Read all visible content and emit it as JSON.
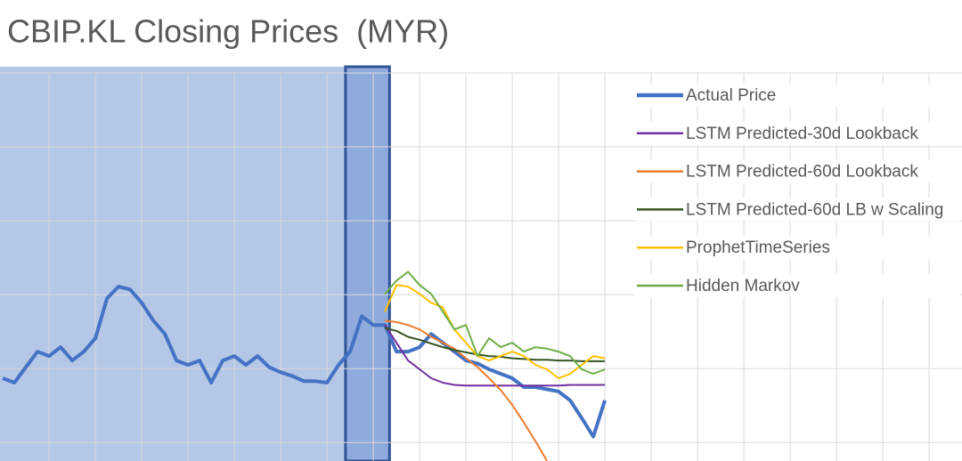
{
  "chart_data": {
    "type": "line",
    "title": "CBIP.KL Closing Prices  (MYR)",
    "x": [
      0,
      0.25,
      0.5,
      0.75,
      1,
      1.25,
      1.5,
      1.75,
      2,
      2.25,
      2.5,
      2.75,
      3,
      3.25,
      3.5,
      3.75,
      4,
      4.25,
      4.5,
      4.75,
      5,
      5.25,
      5.5,
      5.75,
      6,
      6.25,
      6.5,
      6.75,
      7,
      7.25,
      7.5,
      7.75,
      8,
      8.25,
      8.5,
      8.75,
      9,
      9.25,
      9.5,
      9.75,
      10,
      10.25,
      10.5,
      10.75,
      11,
      11.25,
      11.5,
      11.75,
      12,
      12.25,
      12.5,
      12.75,
      13
    ],
    "series": [
      {
        "name": "Actual Price",
        "color": "#4472c4",
        "width": 4,
        "values": [
          1.87,
          1.81,
          2.02,
          2.23,
          2.17,
          2.29,
          2.11,
          2.23,
          2.41,
          2.95,
          3.11,
          3.07,
          2.89,
          2.65,
          2.47,
          2.11,
          2.05,
          2.11,
          1.81,
          2.11,
          2.17,
          2.05,
          2.17,
          2.02,
          1.95,
          1.9,
          1.83,
          1.83,
          1.81,
          2.05,
          2.23,
          2.71,
          2.59,
          2.59,
          2.23,
          2.23,
          2.29,
          2.47,
          2.35,
          2.23,
          2.11,
          2.07,
          1.99,
          1.93,
          1.87,
          1.75,
          1.75,
          1.72,
          1.69,
          1.57,
          1.33,
          1.08,
          1.57
        ]
      },
      {
        "name": "LSTM Predicted-30d Lookback",
        "color": "#7030a0",
        "width": 2,
        "values": [
          null,
          null,
          null,
          null,
          null,
          null,
          null,
          null,
          null,
          null,
          null,
          null,
          null,
          null,
          null,
          null,
          null,
          null,
          null,
          null,
          null,
          null,
          null,
          null,
          null,
          null,
          null,
          null,
          null,
          null,
          null,
          null,
          null,
          2.59,
          2.35,
          2.11,
          1.99,
          1.87,
          1.81,
          1.78,
          1.77,
          1.77,
          1.77,
          1.77,
          1.77,
          1.77,
          1.77,
          1.77,
          1.77,
          1.78,
          1.78,
          1.78,
          1.78
        ]
      },
      {
        "name": "LSTM Predicted-60d Lookback",
        "color": "#ed7d31",
        "width": 2,
        "values": [
          null,
          null,
          null,
          null,
          null,
          null,
          null,
          null,
          null,
          null,
          null,
          null,
          null,
          null,
          null,
          null,
          null,
          null,
          null,
          null,
          null,
          null,
          null,
          null,
          null,
          null,
          null,
          null,
          null,
          null,
          null,
          null,
          null,
          2.65,
          2.63,
          2.59,
          2.53,
          2.43,
          2.35,
          2.27,
          2.14,
          2.02,
          1.87,
          1.71,
          1.51,
          1.27,
          1.02,
          0.75,
          null,
          null,
          null,
          null,
          null
        ]
      },
      {
        "name": "LSTM Predicted-60d LB w Scaling",
        "color": "#375623",
        "width": 2,
        "values": [
          null,
          null,
          null,
          null,
          null,
          null,
          null,
          null,
          null,
          null,
          null,
          null,
          null,
          null,
          null,
          null,
          null,
          null,
          null,
          null,
          null,
          null,
          null,
          null,
          null,
          null,
          null,
          null,
          null,
          null,
          null,
          null,
          null,
          2.55,
          2.51,
          2.43,
          2.39,
          2.34,
          2.29,
          2.25,
          2.22,
          2.19,
          2.17,
          2.16,
          2.14,
          2.13,
          2.12,
          2.12,
          2.11,
          2.11,
          2.1,
          2.1,
          2.1
        ]
      },
      {
        "name": "ProphetTimeSeries",
        "color": "#ffc000",
        "width": 2,
        "values": [
          null,
          null,
          null,
          null,
          null,
          null,
          null,
          null,
          null,
          null,
          null,
          null,
          null,
          null,
          null,
          null,
          null,
          null,
          null,
          null,
          null,
          null,
          null,
          null,
          null,
          null,
          null,
          null,
          null,
          null,
          null,
          null,
          null,
          2.77,
          3.13,
          3.11,
          3.01,
          2.89,
          2.83,
          2.53,
          2.35,
          2.17,
          2.11,
          2.17,
          2.23,
          2.17,
          2.05,
          1.99,
          1.87,
          1.93,
          2.05,
          2.17,
          2.14
        ]
      },
      {
        "name": "Hidden Markov",
        "color": "#70ad47",
        "width": 2,
        "values": [
          null,
          null,
          null,
          null,
          null,
          null,
          null,
          null,
          null,
          null,
          null,
          null,
          null,
          null,
          null,
          null,
          null,
          null,
          null,
          null,
          null,
          null,
          null,
          null,
          null,
          null,
          null,
          null,
          null,
          null,
          null,
          null,
          null,
          3.01,
          3.19,
          3.31,
          3.13,
          3.01,
          2.77,
          2.53,
          2.59,
          2.17,
          2.41,
          2.29,
          2.35,
          2.23,
          2.29,
          2.27,
          2.23,
          2.17,
          1.99,
          1.93,
          1.99
        ]
      }
    ],
    "spans": [
      {
        "from": -0.06,
        "to": 8.35,
        "color": "#b4c7e7"
      },
      {
        "from": 7.4,
        "to": 8.35,
        "color": "#8faadc",
        "border": "#2f5597"
      }
    ],
    "xlim": [
      -0.06,
      20.71
    ],
    "ylim": [
      0.75,
      6
    ],
    "xticks": [
      1,
      2,
      3,
      4,
      5,
      6,
      7,
      8,
      9,
      10,
      11,
      12,
      13,
      14,
      15,
      16,
      17,
      18,
      19,
      20
    ],
    "yticks": [
      1,
      2,
      3,
      4,
      5,
      6
    ],
    "grid": true,
    "legend": "top-right"
  }
}
